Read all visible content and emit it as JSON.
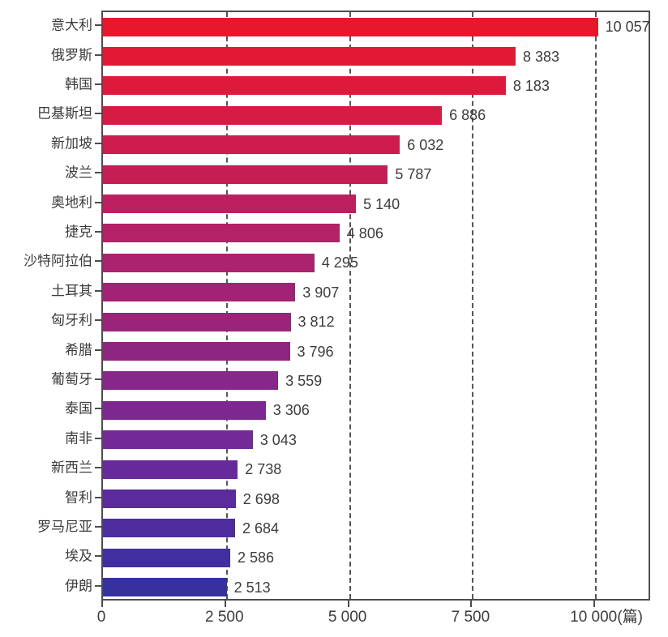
{
  "chart_data": {
    "type": "bar",
    "orientation": "horizontal",
    "title": "",
    "xlabel": "",
    "ylabel": "",
    "unit_label": "(篇)",
    "categories": [
      "意大利",
      "俄罗斯",
      "韩国",
      "巴基斯坦",
      "新加坡",
      "波兰",
      "奥地利",
      "捷克",
      "沙特阿拉伯",
      "土耳其",
      "匈牙利",
      "希腊",
      "葡萄牙",
      "泰国",
      "南非",
      "新西兰",
      "智利",
      "罗马尼亚",
      "埃及",
      "伊朗"
    ],
    "values": [
      10057,
      8383,
      8183,
      6886,
      6032,
      5787,
      5140,
      4806,
      4295,
      3907,
      3812,
      3796,
      3559,
      3306,
      3043,
      2738,
      2698,
      2684,
      2586,
      2513
    ],
    "value_labels": [
      "10 057",
      "8 383",
      "8 183",
      "6 886",
      "6 032",
      "5 787",
      "5 140",
      "4 806",
      "4 295",
      "3 907",
      "3 812",
      "3 796",
      "3 559",
      "3 306",
      "3 043",
      "2 738",
      "2 698",
      "2 684",
      "2 586",
      "2 513"
    ],
    "bar_colors": [
      "#e8172b",
      "#e31834",
      "#de193c",
      "#d61b45",
      "#cd1c4d",
      "#c51e55",
      "#bc1f5e",
      "#b42166",
      "#ab226e",
      "#a22376",
      "#992478",
      "#8e2680",
      "#862789",
      "#7d2891",
      "#732996",
      "#672a9a",
      "#5b2b9d",
      "#4e2d9e",
      "#422f9f",
      "#3731a0"
    ],
    "x_axis": {
      "min": 0,
      "max": 11150,
      "ticks": [
        0,
        2500,
        5000,
        7500,
        10000
      ],
      "tick_labels": [
        "0",
        "2 500",
        "5 000",
        "7 500",
        "10 000"
      ],
      "gridlines": [
        2500,
        5000,
        7500,
        10000
      ],
      "grid_style": "dashed"
    },
    "legend": null,
    "colors": {
      "text": "#3c3c3c",
      "axis": "#4d4d4d",
      "grid": "#555555",
      "background": "#ffffff"
    }
  }
}
